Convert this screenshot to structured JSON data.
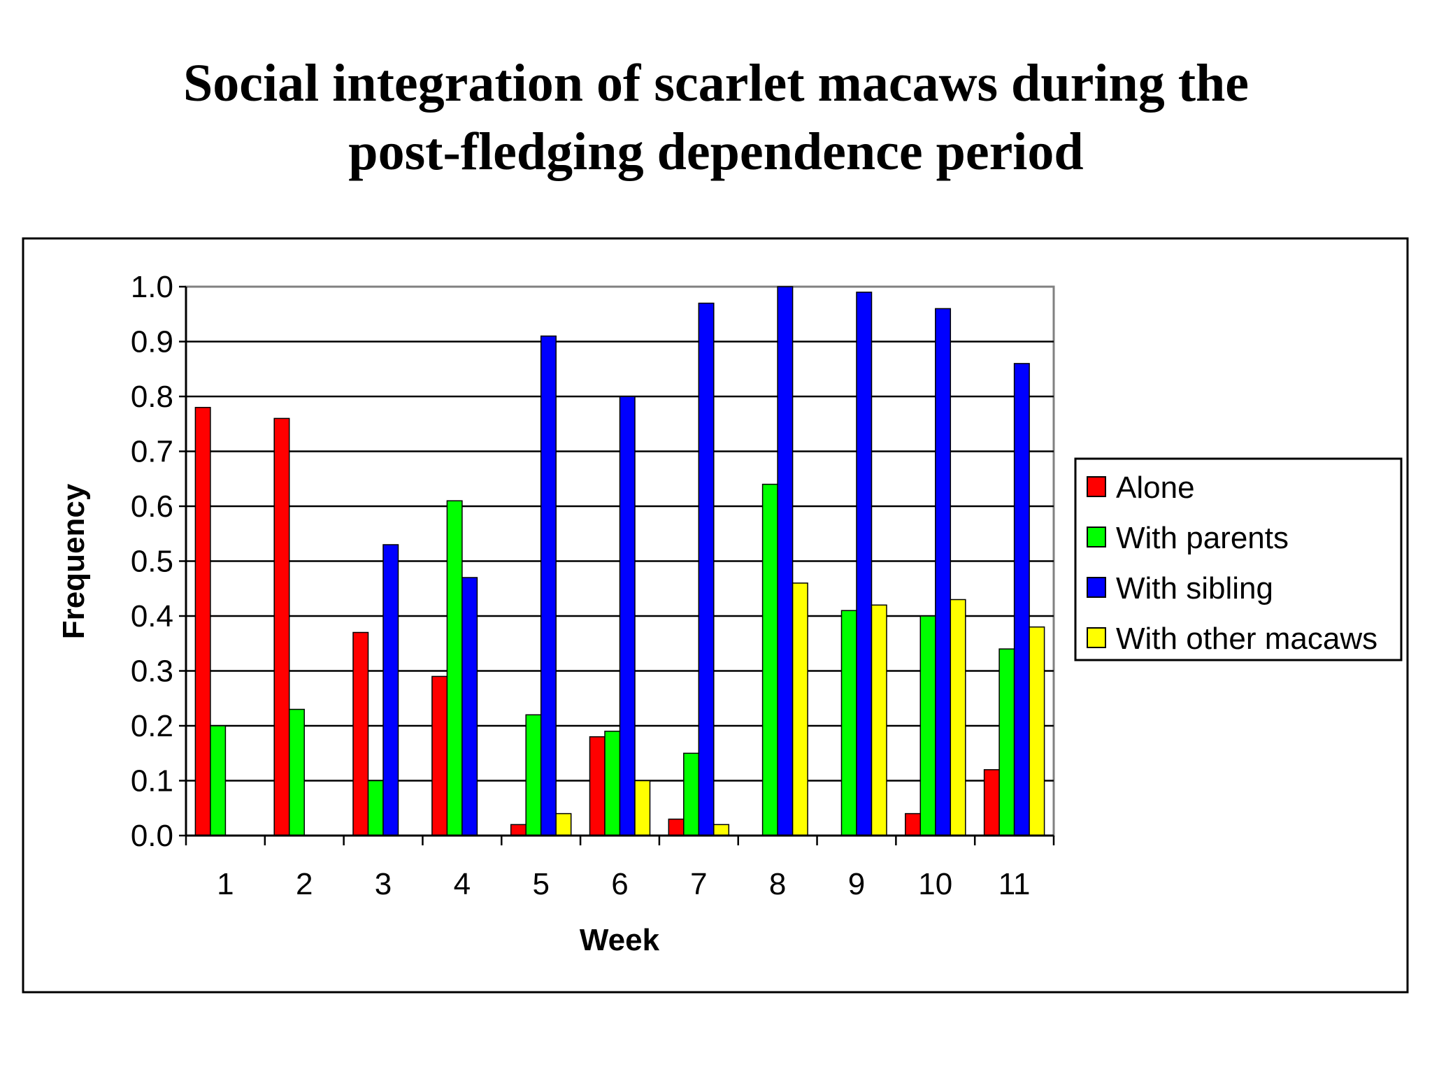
{
  "title_line1": "Social integration of scarlet macaws during the",
  "title_line2": "post-fledging dependence period",
  "chart_data": {
    "type": "bar",
    "xlabel": "Week",
    "ylabel": "Frequency",
    "ylim": [
      0,
      1.0
    ],
    "yticks": [
      "0.0",
      "0.1",
      "0.2",
      "0.3",
      "0.4",
      "0.5",
      "0.6",
      "0.7",
      "0.8",
      "0.9",
      "1.0"
    ],
    "categories": [
      "1",
      "2",
      "3",
      "4",
      "5",
      "6",
      "7",
      "8",
      "9",
      "10",
      "11"
    ],
    "grid": true,
    "legend_position": "right",
    "series": [
      {
        "name": "Alone",
        "color": "#ff0000",
        "values": [
          0.78,
          0.76,
          0.37,
          0.29,
          0.02,
          0.18,
          0.03,
          0,
          0,
          0.04,
          0.12
        ]
      },
      {
        "name": "With parents",
        "color": "#00ff00",
        "values": [
          0.2,
          0.23,
          0.1,
          0.61,
          0.22,
          0.19,
          0.15,
          0.64,
          0.41,
          0.4,
          0.34
        ]
      },
      {
        "name": "With sibling",
        "color": "#0000ff",
        "values": [
          0,
          0,
          0.53,
          0.47,
          0.91,
          0.8,
          0.97,
          1.0,
          0.99,
          0.96,
          0.86
        ]
      },
      {
        "name": "With other macaws",
        "color": "#ffff00",
        "values": [
          0,
          0,
          0,
          0,
          0.04,
          0.1,
          0.02,
          0.46,
          0.42,
          0.43,
          0.38
        ]
      }
    ]
  }
}
